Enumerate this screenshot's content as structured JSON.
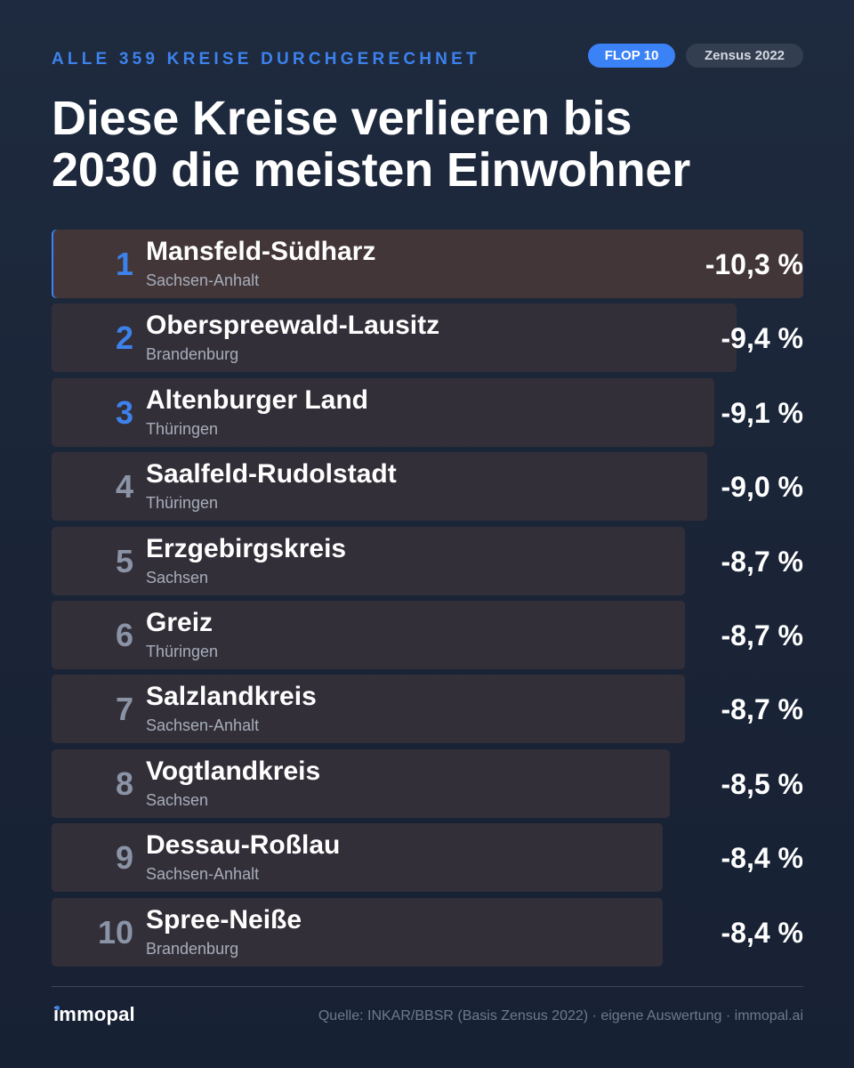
{
  "header": {
    "kicker": "ALLE 359 KREISE DURCHGERECHNET",
    "badge_primary": "FLOP 10",
    "badge_secondary": "Zensus 2022",
    "title_line1": "Diese Kreise verlieren bis",
    "title_line2": "2030 die meisten Einwohner"
  },
  "chart_data": {
    "type": "bar",
    "orientation": "horizontal",
    "title": "Diese Kreise verlieren bis 2030 die meisten Einwohner",
    "categories": [
      "Mansfeld-Südharz",
      "Oberspreewald-Lausitz",
      "Altenburger Land",
      "Saalfeld-Rudolstadt",
      "Erzgebirgskreis",
      "Greiz",
      "Salzlandkreis",
      "Vogtlandkreis",
      "Dessau-Roßlau",
      "Spree-Neiße"
    ],
    "values": [
      -10.3,
      -9.4,
      -9.1,
      -9.0,
      -8.7,
      -8.7,
      -8.7,
      -8.5,
      -8.4,
      -8.4
    ],
    "rows": [
      {
        "rank": "1",
        "name": "Mansfeld-Südharz",
        "state": "Sachsen-Anhalt",
        "value": -10.3,
        "label": "-10,3 %"
      },
      {
        "rank": "2",
        "name": "Oberspreewald-Lausitz",
        "state": "Brandenburg",
        "value": -9.4,
        "label": "-9,4 %"
      },
      {
        "rank": "3",
        "name": "Altenburger Land",
        "state": "Thüringen",
        "value": -9.1,
        "label": "-9,1 %"
      },
      {
        "rank": "4",
        "name": "Saalfeld-Rudolstadt",
        "state": "Thüringen",
        "value": -9.0,
        "label": "-9,0 %"
      },
      {
        "rank": "5",
        "name": "Erzgebirgskreis",
        "state": "Sachsen",
        "value": -8.7,
        "label": "-8,7 %"
      },
      {
        "rank": "6",
        "name": "Greiz",
        "state": "Thüringen",
        "value": -8.7,
        "label": "-8,7 %"
      },
      {
        "rank": "7",
        "name": "Salzlandkreis",
        "state": "Sachsen-Anhalt",
        "value": -8.7,
        "label": "-8,7 %"
      },
      {
        "rank": "8",
        "name": "Vogtlandkreis",
        "state": "Sachsen",
        "value": -8.5,
        "label": "-8,5 %"
      },
      {
        "rank": "9",
        "name": "Dessau-Roßlau",
        "state": "Sachsen-Anhalt",
        "value": -8.4,
        "label": "-8,4 %"
      },
      {
        "rank": "10",
        "name": "Spree-Neiße",
        "state": "Brandenburg",
        "value": -8.4,
        "label": "-8,4 %"
      }
    ],
    "grid": false,
    "legend": "none"
  },
  "footer": {
    "logo": "immopal",
    "source": "Quelle: INKAR/BBSR (Basis Zensus 2022) · eigene Auswertung · immopal.ai"
  },
  "colors": {
    "background": "#1b2538",
    "accent": "#3b82f6",
    "bar": "#332f38",
    "bar_highlight": "#433638",
    "badge_secondary": "#333e50"
  }
}
